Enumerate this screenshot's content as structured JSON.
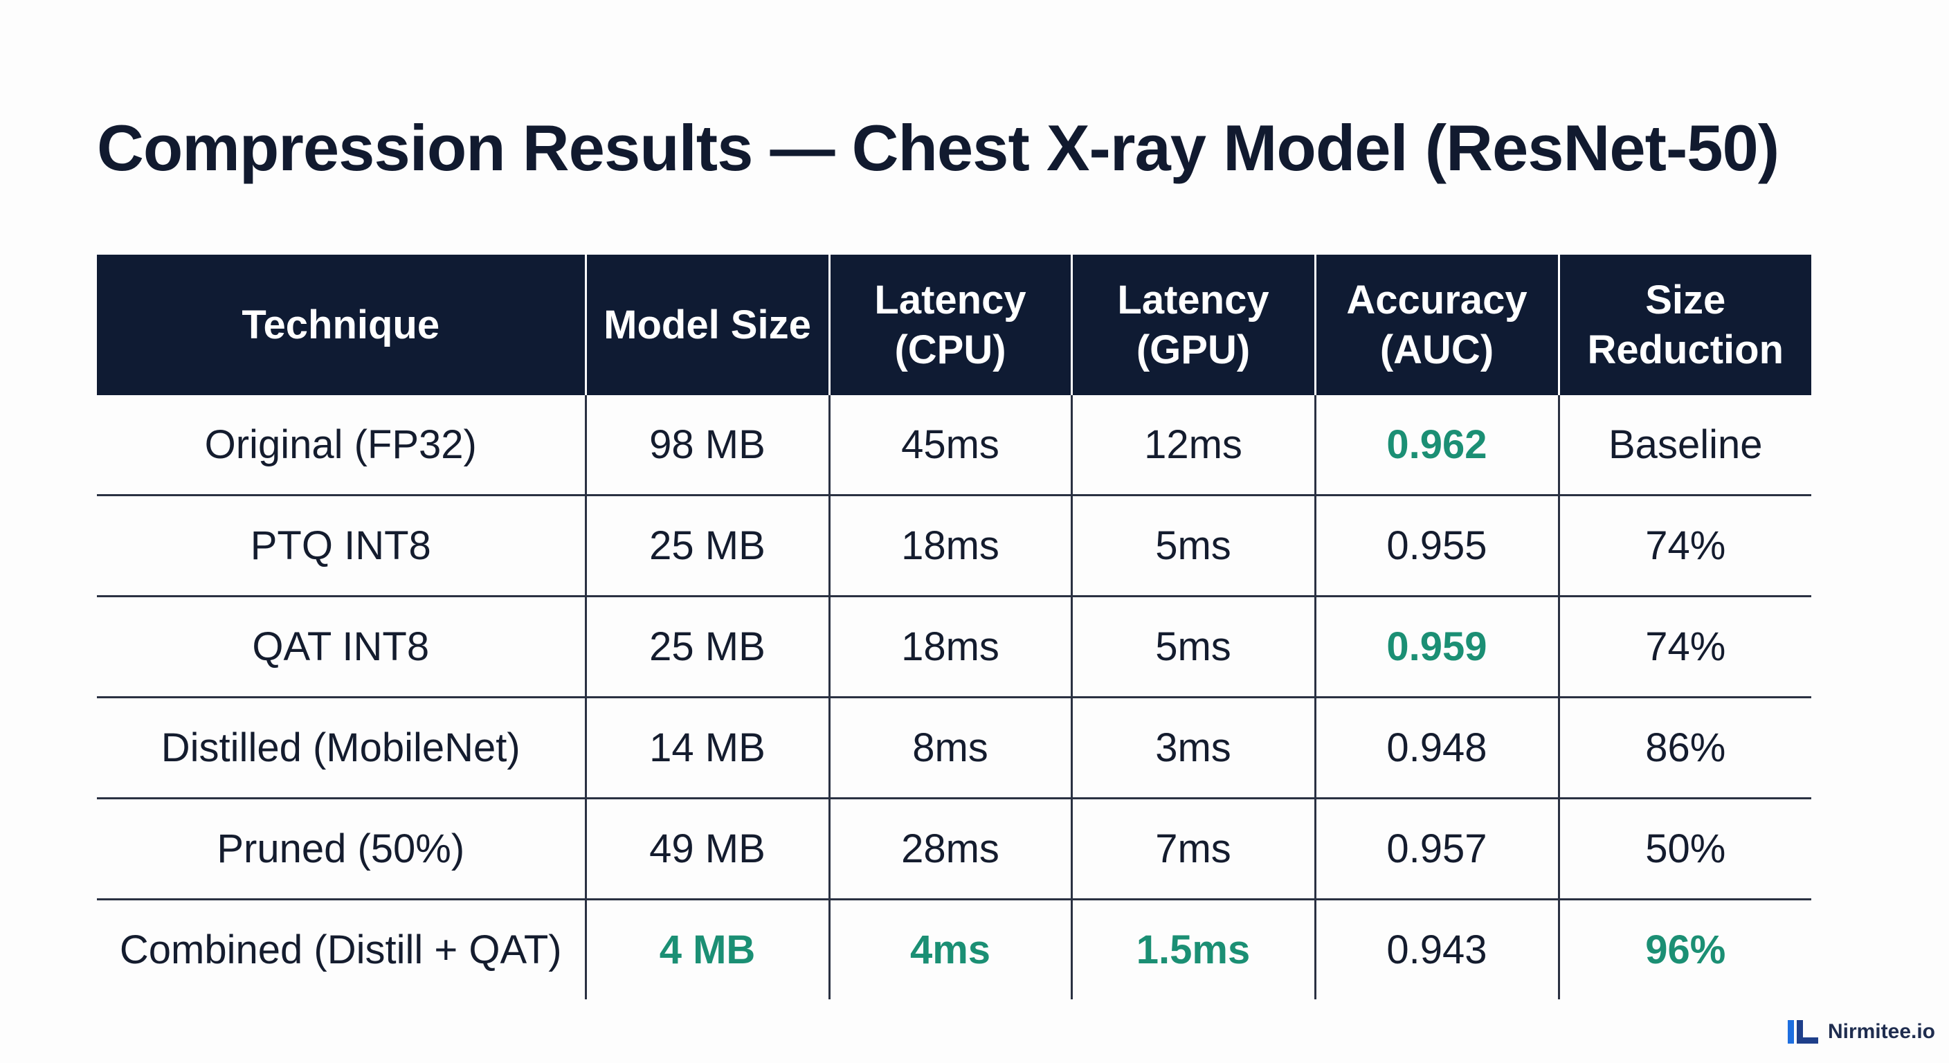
{
  "header": {
    "title": "Compression Results — Chest X-ray Model (ResNet-50)"
  },
  "table": {
    "columns": [
      "Technique",
      "Model Size",
      "Latency (CPU)",
      "Latency (GPU)",
      "Accuracy (AUC)",
      "Size Reduction"
    ],
    "rows": [
      [
        "Original (FP32)",
        "98 MB",
        "45ms",
        "12ms",
        "0.962",
        "Baseline"
      ],
      [
        "PTQ INT8",
        "25 MB",
        "18ms",
        "5ms",
        "0.955",
        "74%"
      ],
      [
        "QAT INT8",
        "25 MB",
        "18ms",
        "5ms",
        "0.959",
        "74%"
      ],
      [
        "Distilled (MobileNet)",
        "14 MB",
        "8ms",
        "3ms",
        "0.948",
        "86%"
      ],
      [
        "Pruned (50%)",
        "49 MB",
        "28ms",
        "7ms",
        "0.957",
        "50%"
      ],
      [
        "Combined (Distill + QAT)",
        "4 MB",
        "4ms",
        "1.5ms",
        "0.943",
        "96%"
      ]
    ]
  },
  "footer": {
    "brand": "Nirmitee.io"
  }
}
